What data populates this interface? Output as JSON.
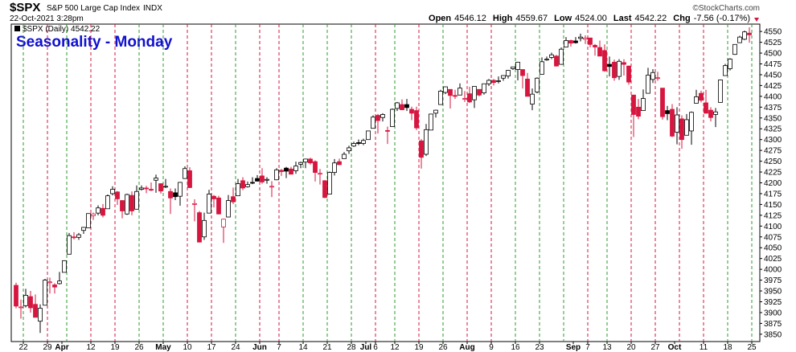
{
  "chart_data": {
    "type": "candlestick",
    "title": "Seasonality - Monday",
    "legend_label": "$SPX (Daily) 4542.22",
    "header": {
      "symbol": "$SPX",
      "name": "S&P 500 Large Cap Index",
      "exchange": "INDX",
      "timestamp": "22-Oct-2021 3:28pm",
      "copyright": "©StockCharts.com",
      "quote": [
        {
          "label": "Open",
          "value": "4546.12"
        },
        {
          "label": "High",
          "value": "4559.67"
        },
        {
          "label": "Low",
          "value": "4524.00"
        },
        {
          "label": "Last",
          "value": "4542.22"
        },
        {
          "label": "Chg",
          "value": "-7.56 (-0.17%)"
        }
      ]
    },
    "up_color": "#000000",
    "down_color": "#d6163f",
    "marker_up_color": "#2e9a2e",
    "marker_down_color": "#d6163f",
    "categories": [
      "Mar 18",
      "Mar 19",
      "Mar 22",
      "Mar 23",
      "Mar 24",
      "Mar 25",
      "Mar 26",
      "Mar 29",
      "Mar 30",
      "Mar 31",
      "Apr 1",
      "Apr 5",
      "Apr 6",
      "Apr 7",
      "Apr 8",
      "Apr 9",
      "Apr 12",
      "Apr 13",
      "Apr 14",
      "Apr 15",
      "Apr 16",
      "Apr 19",
      "Apr 20",
      "Apr 21",
      "Apr 22",
      "Apr 23",
      "Apr 26",
      "Apr 27",
      "Apr 28",
      "Apr 29",
      "Apr 30",
      "May 3",
      "May 4",
      "May 5",
      "May 6",
      "May 7",
      "May 10",
      "May 11",
      "May 12",
      "May 13",
      "May 14",
      "May 17",
      "May 18",
      "May 19",
      "May 20",
      "May 21",
      "May 24",
      "May 25",
      "May 26",
      "May 27",
      "May 28",
      "Jun 1",
      "Jun 2",
      "Jun 3",
      "Jun 4",
      "Jun 7",
      "Jun 8",
      "Jun 9",
      "Jun 10",
      "Jun 11",
      "Jun 14",
      "Jun 15",
      "Jun 16",
      "Jun 17",
      "Jun 18",
      "Jun 21",
      "Jun 22",
      "Jun 23",
      "Jun 24",
      "Jun 25",
      "Jun 28",
      "Jun 29",
      "Jun 30",
      "Jul 1",
      "Jul 2",
      "Jul 6",
      "Jul 7",
      "Jul 8",
      "Jul 9",
      "Jul 12",
      "Jul 13",
      "Jul 14",
      "Jul 15",
      "Jul 16",
      "Jul 19",
      "Jul 20",
      "Jul 21",
      "Jul 22",
      "Jul 23",
      "Jul 26",
      "Jul 27",
      "Jul 28",
      "Jul 29",
      "Jul 30",
      "Aug 2",
      "Aug 3",
      "Aug 4",
      "Aug 5",
      "Aug 6",
      "Aug 9",
      "Aug 10",
      "Aug 11",
      "Aug 12",
      "Aug 13",
      "Aug 16",
      "Aug 17",
      "Aug 18",
      "Aug 19",
      "Aug 20",
      "Aug 23",
      "Aug 24",
      "Aug 25",
      "Aug 26",
      "Aug 27",
      "Aug 30",
      "Aug 31",
      "Sep 1",
      "Sep 2",
      "Sep 3",
      "Sep 7",
      "Sep 8",
      "Sep 9",
      "Sep 10",
      "Sep 13",
      "Sep 14",
      "Sep 15",
      "Sep 16",
      "Sep 17",
      "Sep 20",
      "Sep 21",
      "Sep 22",
      "Sep 23",
      "Sep 24",
      "Sep 27",
      "Sep 28",
      "Sep 29",
      "Sep 30",
      "Oct 1",
      "Oct 4",
      "Oct 5",
      "Oct 6",
      "Oct 7",
      "Oct 8",
      "Oct 11",
      "Oct 12",
      "Oct 13",
      "Oct 14",
      "Oct 15",
      "Oct 18",
      "Oct 19",
      "Oct 20",
      "Oct 21",
      "Oct 22",
      "Oct 25"
    ],
    "candles": [
      [
        3963,
        3969,
        3910,
        3915
      ],
      [
        3913,
        3930,
        3886,
        3913
      ],
      [
        3916,
        3955,
        3912,
        3940
      ],
      [
        3937,
        3950,
        3900,
        3911
      ],
      [
        3919,
        3942,
        3889,
        3889
      ],
      [
        3880,
        3919,
        3853,
        3910
      ],
      [
        3917,
        3978,
        3917,
        3975
      ],
      [
        3969,
        3981,
        3944,
        3971
      ],
      [
        3964,
        3968,
        3944,
        3959
      ],
      [
        3967,
        3994,
        3965,
        3973
      ],
      [
        3993,
        4021,
        3993,
        4020
      ],
      [
        4035,
        4084,
        4035,
        4078
      ],
      [
        4075,
        4086,
        4069,
        4074
      ],
      [
        4074,
        4084,
        4068,
        4080
      ],
      [
        4090,
        4098,
        4082,
        4097
      ],
      [
        4096,
        4129,
        4096,
        4129
      ],
      [
        4124,
        4131,
        4114,
        4128
      ],
      [
        4130,
        4148,
        4125,
        4142
      ],
      [
        4141,
        4151,
        4120,
        4125
      ],
      [
        4140,
        4173,
        4140,
        4170
      ],
      [
        4175,
        4192,
        4171,
        4185
      ],
      [
        4179,
        4181,
        4149,
        4163
      ],
      [
        4159,
        4160,
        4118,
        4135
      ],
      [
        4128,
        4175,
        4126,
        4173
      ],
      [
        4171,
        4180,
        4125,
        4135
      ],
      [
        4139,
        4194,
        4139,
        4180
      ],
      [
        4185,
        4194,
        4182,
        4188
      ],
      [
        4188,
        4193,
        4176,
        4187
      ],
      [
        4185,
        4201,
        4181,
        4183
      ],
      [
        4206,
        4219,
        4177,
        4211
      ],
      [
        4198,
        4199,
        4175,
        4181
      ],
      [
        4191,
        4209,
        4188,
        4192
      ],
      [
        4180,
        4187,
        4128,
        4165
      ],
      [
        4177,
        4187,
        4160,
        4168
      ],
      [
        4169,
        4202,
        4147,
        4201
      ],
      [
        4210,
        4238,
        4209,
        4233
      ],
      [
        4228,
        4236,
        4188,
        4189
      ],
      [
        4150,
        4162,
        4111,
        4152
      ],
      [
        4131,
        4135,
        4062,
        4063
      ],
      [
        4075,
        4131,
        4068,
        4113
      ],
      [
        4130,
        4184,
        4130,
        4174
      ],
      [
        4169,
        4172,
        4143,
        4163
      ],
      [
        4165,
        4170,
        4127,
        4128
      ],
      [
        4098,
        4117,
        4061,
        4116
      ],
      [
        4121,
        4172,
        4120,
        4159
      ],
      [
        4168,
        4189,
        4151,
        4156
      ],
      [
        4170,
        4209,
        4170,
        4198
      ],
      [
        4205,
        4213,
        4183,
        4188
      ],
      [
        4191,
        4203,
        4189,
        4196
      ],
      [
        4201,
        4213,
        4197,
        4200
      ],
      [
        4210,
        4218,
        4203,
        4204
      ],
      [
        4216,
        4234,
        4198,
        4202
      ],
      [
        4206,
        4213,
        4198,
        4208
      ],
      [
        4191,
        4204,
        4167,
        4192
      ],
      [
        4207,
        4234,
        4206,
        4230
      ],
      [
        4229,
        4232,
        4216,
        4226
      ],
      [
        4234,
        4237,
        4211,
        4227
      ],
      [
        4232,
        4237,
        4220,
        4220
      ],
      [
        4228,
        4249,
        4221,
        4239
      ],
      [
        4243,
        4249,
        4234,
        4247
      ],
      [
        4248,
        4255,
        4234,
        4255
      ],
      [
        4255,
        4258,
        4242,
        4246
      ],
      [
        4249,
        4252,
        4203,
        4224
      ],
      [
        4220,
        4232,
        4196,
        4222
      ],
      [
        4205,
        4206,
        4165,
        4166
      ],
      [
        4174,
        4226,
        4174,
        4224
      ],
      [
        4224,
        4255,
        4217,
        4246
      ],
      [
        4249,
        4256,
        4241,
        4242
      ],
      [
        4256,
        4271,
        4256,
        4266
      ],
      [
        4274,
        4286,
        4267,
        4281
      ],
      [
        4285,
        4295,
        4283,
        4291
      ],
      [
        4293,
        4300,
        4287,
        4291
      ],
      [
        4291,
        4302,
        4287,
        4298
      ],
      [
        4300,
        4320,
        4300,
        4320
      ],
      [
        4326,
        4356,
        4326,
        4352
      ],
      [
        4356,
        4359,
        4314,
        4344
      ],
      [
        4351,
        4361,
        4342,
        4358
      ],
      [
        4321,
        4330,
        4290,
        4320
      ],
      [
        4330,
        4372,
        4330,
        4370
      ],
      [
        4372,
        4387,
        4366,
        4385
      ],
      [
        4381,
        4393,
        4368,
        4369
      ],
      [
        4381,
        4394,
        4366,
        4374
      ],
      [
        4370,
        4376,
        4345,
        4361
      ],
      [
        4367,
        4376,
        4322,
        4327
      ],
      [
        4297,
        4301,
        4233,
        4259
      ],
      [
        4266,
        4336,
        4262,
        4323
      ],
      [
        4322,
        4359,
        4322,
        4359
      ],
      [
        4361,
        4369,
        4351,
        4368
      ],
      [
        4381,
        4415,
        4381,
        4412
      ],
      [
        4409,
        4422,
        4405,
        4422
      ],
      [
        4416,
        4416,
        4372,
        4402
      ],
      [
        4402,
        4415,
        4394,
        4400
      ],
      [
        4403,
        4430,
        4403,
        4419
      ],
      [
        4395,
        4412,
        4387,
        4395
      ],
      [
        4406,
        4422,
        4385,
        4387
      ],
      [
        4392,
        4423,
        4373,
        4423
      ],
      [
        4416,
        4416,
        4400,
        4403
      ],
      [
        4408,
        4429,
        4404,
        4429
      ],
      [
        4429,
        4440,
        4424,
        4437
      ],
      [
        4437,
        4440,
        4425,
        4432
      ],
      [
        4436,
        4446,
        4430,
        4436
      ],
      [
        4442,
        4449,
        4436,
        4448
      ],
      [
        4447,
        4461,
        4441,
        4460
      ],
      [
        4464,
        4468,
        4461,
        4468
      ],
      [
        4462,
        4480,
        4437,
        4479
      ],
      [
        4462,
        4462,
        4418,
        4448
      ],
      [
        4440,
        4454,
        4400,
        4400
      ],
      [
        4382,
        4418,
        4368,
        4405
      ],
      [
        4410,
        4444,
        4407,
        4442
      ],
      [
        4451,
        4490,
        4451,
        4480
      ],
      [
        4484,
        4492,
        4482,
        4486
      ],
      [
        4490,
        4501,
        4486,
        4496
      ],
      [
        4493,
        4496,
        4469,
        4470
      ],
      [
        4474,
        4513,
        4473,
        4509
      ],
      [
        4514,
        4537,
        4514,
        4529
      ],
      [
        4529,
        4531,
        4515,
        4523
      ],
      [
        4528,
        4537,
        4522,
        4524
      ],
      [
        4534,
        4545,
        4527,
        4537
      ],
      [
        4532,
        4541,
        4521,
        4535
      ],
      [
        4535,
        4535,
        4513,
        4520
      ],
      [
        4518,
        4521,
        4494,
        4514
      ],
      [
        4513,
        4529,
        4493,
        4493
      ],
      [
        4506,
        4520,
        4457,
        4459
      ],
      [
        4474,
        4492,
        4446,
        4469
      ],
      [
        4479,
        4485,
        4436,
        4443
      ],
      [
        4446,
        4486,
        4438,
        4481
      ],
      [
        4478,
        4486,
        4448,
        4474
      ],
      [
        4470,
        4471,
        4427,
        4433
      ],
      [
        4403,
        4403,
        4306,
        4358
      ],
      [
        4375,
        4394,
        4347,
        4354
      ],
      [
        4367,
        4416,
        4367,
        4395
      ],
      [
        4407,
        4466,
        4407,
        4449
      ],
      [
        4439,
        4463,
        4431,
        4455
      ],
      [
        4443,
        4457,
        4436,
        4443
      ],
      [
        4419,
        4419,
        4346,
        4353
      ],
      [
        4367,
        4378,
        4345,
        4360
      ],
      [
        4370,
        4382,
        4306,
        4308
      ],
      [
        4317,
        4375,
        4289,
        4357
      ],
      [
        4348,
        4356,
        4279,
        4300
      ],
      [
        4310,
        4359,
        4310,
        4346
      ],
      [
        4320,
        4365,
        4288,
        4363
      ],
      [
        4384,
        4415,
        4384,
        4399
      ],
      [
        4407,
        4413,
        4386,
        4391
      ],
      [
        4385,
        4415,
        4360,
        4361
      ],
      [
        4368,
        4375,
        4342,
        4351
      ],
      [
        4358,
        4373,
        4329,
        4364
      ],
      [
        4386,
        4439,
        4386,
        4438
      ],
      [
        4448,
        4475,
        4448,
        4471
      ],
      [
        4464,
        4488,
        4460,
        4486
      ],
      [
        4497,
        4520,
        4496,
        4520
      ],
      [
        4524,
        4540,
        4524,
        4537
      ],
      [
        4532,
        4552,
        4530,
        4549
      ],
      [
        4546.12,
        4559.67,
        4524,
        4542.22
      ],
      null
    ],
    "xticks": [
      {
        "value": "Mar 22",
        "label": "22"
      },
      {
        "value": "Mar 29",
        "label": "29"
      },
      {
        "value": "Apr 1",
        "label": "Apr"
      },
      {
        "value": "Apr 12",
        "label": "12"
      },
      {
        "value": "Apr 19",
        "label": "19"
      },
      {
        "value": "Apr 26",
        "label": "26"
      },
      {
        "value": "May 3",
        "label": "May"
      },
      {
        "value": "May 10",
        "label": "10"
      },
      {
        "value": "May 17",
        "label": "17"
      },
      {
        "value": "May 24",
        "label": "24"
      },
      {
        "value": "Jun 1",
        "label": "Jun"
      },
      {
        "value": "Jun 7",
        "label": "7"
      },
      {
        "value": "Jun 14",
        "label": "14"
      },
      {
        "value": "Jun 21",
        "label": "21"
      },
      {
        "value": "Jun 28",
        "label": "28"
      },
      {
        "value": "Jul 1",
        "label": "Jul"
      },
      {
        "value": "Jul 6",
        "label": "6"
      },
      {
        "value": "Jul 12",
        "label": "12"
      },
      {
        "value": "Jul 19",
        "label": "19"
      },
      {
        "value": "Jul 26",
        "label": "26"
      },
      {
        "value": "Aug 2",
        "label": "Aug"
      },
      {
        "value": "Aug 9",
        "label": "9"
      },
      {
        "value": "Aug 16",
        "label": "16"
      },
      {
        "value": "Aug 23",
        "label": "23"
      },
      {
        "value": "Sep 1",
        "label": "Sep"
      },
      {
        "value": "Sep 7",
        "label": "7"
      },
      {
        "value": "Sep 13",
        "label": "13"
      },
      {
        "value": "Sep 20",
        "label": "20"
      },
      {
        "value": "Sep 27",
        "label": "27"
      },
      {
        "value": "Oct 1",
        "label": "Oct"
      },
      {
        "value": "Oct 11",
        "label": "11"
      },
      {
        "value": "Oct 18",
        "label": "18"
      },
      {
        "value": "Oct 25",
        "label": "25"
      }
    ],
    "week_lines": [
      "Mar 22",
      "Mar 29",
      "Apr 5",
      "Apr 12",
      "Apr 19",
      "Apr 26",
      "May 3",
      "May 10",
      "May 17",
      "May 24",
      "Jun 1",
      "Jun 7",
      "Jun 14",
      "Jun 21",
      "Jun 28",
      "Jul 6",
      "Jul 12",
      "Jul 19",
      "Jul 26",
      "Aug 2",
      "Aug 9",
      "Aug 16",
      "Aug 23",
      "Aug 30",
      "Sep 7",
      "Sep 13",
      "Sep 20",
      "Sep 27",
      "Oct 4",
      "Oct 11",
      "Oct 18",
      "Oct 25"
    ],
    "ylim": [
      3833,
      4567
    ],
    "yticks": [
      3850,
      3875,
      3900,
      3925,
      3950,
      3975,
      4000,
      4025,
      4050,
      4075,
      4100,
      4125,
      4150,
      4175,
      4200,
      4225,
      4250,
      4275,
      4300,
      4325,
      4350,
      4375,
      4400,
      4425,
      4450,
      4475,
      4500,
      4525,
      4550
    ]
  }
}
